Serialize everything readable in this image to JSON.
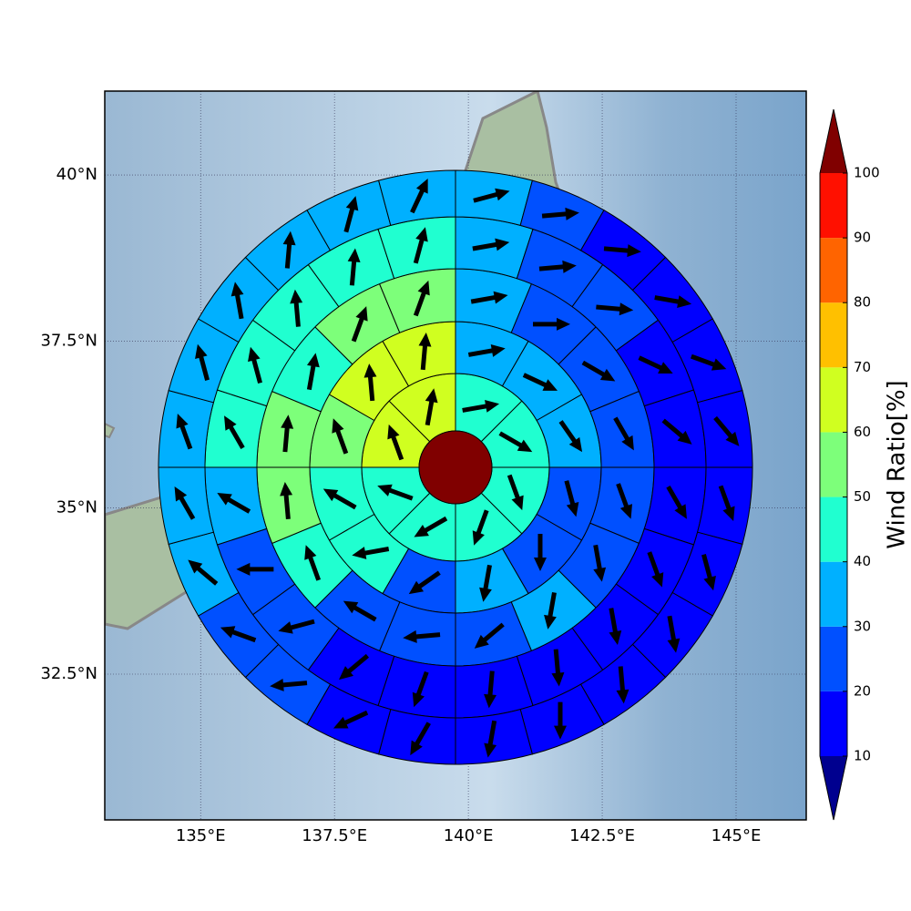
{
  "chart_data": {
    "type": "polar-grid-map",
    "colorbar_label": "Wind Ratio[%]",
    "xlim": [
      133.21,
      146.31
    ],
    "ylim": [
      30.31,
      41.26
    ],
    "xticks": [
      {
        "value": 135,
        "label": "135°E"
      },
      {
        "value": 137.5,
        "label": "137.5°E"
      },
      {
        "value": 140,
        "label": "140°E"
      },
      {
        "value": 142.5,
        "label": "142.5°E"
      },
      {
        "value": 145,
        "label": "145°E"
      }
    ],
    "yticks": [
      {
        "value": 32.5,
        "label": "32.5°N"
      },
      {
        "value": 35,
        "label": "35°N"
      },
      {
        "value": 37.5,
        "label": "37.5°N"
      },
      {
        "value": 40,
        "label": "40°N"
      }
    ],
    "grid": true,
    "levels": [
      10,
      20,
      30,
      40,
      50,
      60,
      70,
      80,
      90,
      100
    ],
    "colors": [
      "#0000ff",
      "#0050ff",
      "#00b0ff",
      "#20ffd0",
      "#7dff7a",
      "#d0ff20",
      "#ffc000",
      "#ff6400",
      "#ff1000"
    ],
    "under_color": "#00008f",
    "over_color": "#800000",
    "center_value": 105,
    "rings": [
      {
        "values": [
          45,
          45,
          45,
          45,
          45,
          45,
          65,
          65
        ],
        "directions": [
          80,
          120,
          160,
          200,
          240,
          290,
          340,
          10
        ]
      },
      {
        "values": [
          35,
          35,
          35,
          25,
          25,
          35,
          25,
          45,
          45,
          55,
          65,
          65
        ],
        "directions": [
          80,
          115,
          145,
          165,
          180,
          190,
          235,
          260,
          300,
          340,
          355,
          5
        ]
      },
      {
        "values": [
          35,
          25,
          25,
          25,
          25,
          25,
          35,
          25,
          25,
          25,
          45,
          55,
          55,
          45,
          55,
          55
        ],
        "directions": [
          80,
          90,
          120,
          150,
          160,
          170,
          190,
          230,
          265,
          300,
          340,
          355,
          5,
          10,
          20,
          20
        ]
      },
      {
        "values": [
          35,
          25,
          25,
          15,
          15,
          15,
          15,
          15,
          15,
          15,
          15,
          15,
          25,
          25,
          35,
          45,
          45,
          45,
          45,
          45
        ],
        "directions": [
          80,
          85,
          95,
          115,
          130,
          150,
          160,
          170,
          175,
          185,
          200,
          230,
          255,
          270,
          300,
          330,
          345,
          355,
          5,
          15
        ]
      },
      {
        "values": [
          35,
          25,
          15,
          15,
          15,
          15,
          15,
          15,
          15,
          15,
          15,
          15,
          15,
          15,
          25,
          25,
          35,
          35,
          35,
          35,
          35,
          35,
          35,
          35
        ],
        "directions": [
          75,
          85,
          95,
          100,
          110,
          140,
          160,
          165,
          170,
          175,
          180,
          190,
          210,
          245,
          265,
          290,
          310,
          330,
          340,
          345,
          350,
          5,
          15,
          25
        ]
      }
    ]
  }
}
